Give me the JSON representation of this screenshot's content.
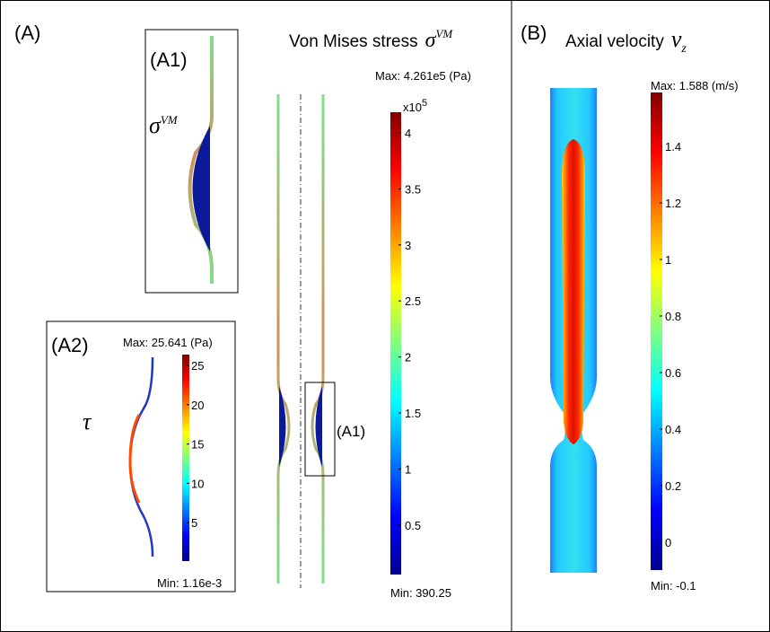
{
  "panel_a": {
    "label": "(A)",
    "title": "Von Mises stress",
    "symbol": "σ",
    "symbol_sup": "VM",
    "max_label": "Max: 4.261e5  (Pa)",
    "min_label": "Min: 390.25",
    "colorbar_multiplier": "x10",
    "colorbar_exponent": "5",
    "colorbar_ticks": [
      "4",
      "3.5",
      "3",
      "2.5",
      "2",
      "1.5",
      "1",
      "0.5"
    ],
    "zoom_label": "(A1)",
    "inset_a1": {
      "label": "(A1)",
      "symbol": "σ",
      "symbol_sup": "VM"
    },
    "inset_a2": {
      "label": "(A2)",
      "symbol": "τ",
      "max_label": "Max: 25.641   (Pa)",
      "min_label": "Min: 1.16e-3",
      "colorbar_ticks": [
        "25",
        "20",
        "15",
        "10",
        "5"
      ]
    }
  },
  "panel_b": {
    "label": "(B)",
    "title": "Axial velocity",
    "symbol": "v",
    "symbol_sub": "z",
    "max_label": "Max: 1.588  (m/s)",
    "min_label": "Min: -0.1",
    "colorbar_ticks": [
      "1.4",
      "1.2",
      "1",
      "0.8",
      "0.6",
      "0.4",
      "0.2",
      "0"
    ]
  }
}
